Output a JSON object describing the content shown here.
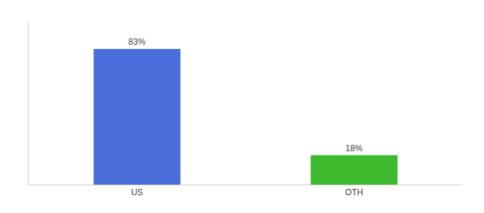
{
  "chart_data": {
    "type": "bar",
    "categories": [
      "US",
      "OTH"
    ],
    "values": [
      83,
      18
    ],
    "value_labels": [
      "83%",
      "18%"
    ],
    "colors": [
      "#4a6edb",
      "#3dba2e"
    ],
    "ylim": [
      0,
      100
    ],
    "yticks": [],
    "data_labels": true,
    "tick_labels": "x",
    "grid": false
  }
}
